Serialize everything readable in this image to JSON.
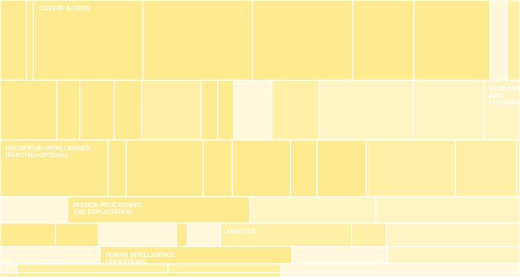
{
  "chart_data": {
    "type": "treemap",
    "title": "",
    "colors": {
      "strong": "#ffeb8f",
      "medium": "#fff0a6",
      "light": "#fff5c4",
      "pale": "#fff8dd",
      "text": "#ffffff"
    },
    "rows": [
      {
        "height": 116,
        "cells": [
          {
            "w": 38,
            "shade": "strong"
          },
          {
            "w": 10,
            "shade": "strong"
          },
          {
            "w": 158,
            "shade": "strong",
            "label": "COVERT ACTION"
          },
          {
            "w": 158,
            "shade": "strong"
          },
          {
            "w": 145,
            "shade": "strong"
          },
          {
            "w": 88,
            "shade": "strong"
          },
          {
            "w": 110,
            "shade": "strong"
          },
          {
            "w": 24,
            "shade": "pale"
          },
          {
            "w": 19,
            "shade": "medium"
          }
        ]
      },
      {
        "height": 86,
        "cells": [
          {
            "w": 82,
            "shade": "strong"
          },
          {
            "w": 33,
            "shade": "strong"
          },
          {
            "w": 50,
            "shade": "strong"
          },
          {
            "w": 39,
            "shade": "strong"
          },
          {
            "w": 86,
            "shade": "medium"
          },
          {
            "w": 24,
            "shade": "strong"
          },
          {
            "w": 23,
            "shade": "strong"
          },
          {
            "w": 55,
            "shade": "pale"
          },
          {
            "w": 68,
            "shade": "medium"
          },
          {
            "w": 136,
            "shade": "light"
          },
          {
            "w": 102,
            "shade": "light"
          },
          {
            "w": 52,
            "shade": "light",
            "label": "FACILITIES AND\nLOGISTICS"
          }
        ]
      },
      {
        "height": 82,
        "cells": [
          {
            "w": 156,
            "shade": "strong",
            "label": "GEOSPATIAL INTELLIGENCE\n(ELECTRO-OPTICAL)"
          },
          {
            "w": 26,
            "shade": "strong"
          },
          {
            "w": 111,
            "shade": "strong"
          },
          {
            "w": 42,
            "shade": "strong"
          },
          {
            "w": 84,
            "shade": "strong"
          },
          {
            "w": 38,
            "shade": "strong"
          },
          {
            "w": 71,
            "shade": "strong"
          },
          {
            "w": 129,
            "shade": "medium"
          },
          {
            "w": 88,
            "shade": "medium"
          },
          {
            "w": 5,
            "shade": "medium"
          }
        ]
      },
      {
        "height": 38,
        "cells": [
          {
            "w": 97,
            "shade": "pale"
          },
          {
            "w": 263,
            "shade": "strong",
            "label": "MISSION PROCESSING\nAND EXPLOITATION"
          },
          {
            "w": 182,
            "shade": "light"
          },
          {
            "w": 208,
            "shade": "light"
          }
        ]
      },
      {
        "height": 34,
        "cells": [
          {
            "w": 80,
            "shade": "strong"
          },
          {
            "w": 62,
            "shade": "strong"
          },
          {
            "w": 112,
            "shade": "pale"
          },
          {
            "w": 16,
            "shade": "strong"
          },
          {
            "w": 48,
            "shade": "pale"
          },
          {
            "w": 189,
            "shade": "medium",
            "label": "ANALYSIS"
          },
          {
            "w": 50,
            "shade": "medium"
          },
          {
            "w": 193,
            "shade": "light"
          }
        ]
      },
      {
        "height": 25,
        "cells": [
          {
            "w": 144,
            "shade": "pale"
          },
          {
            "w": 277,
            "shade": "strong",
            "label": "HUMAN INTELLIGENCE\nOPERATIONS"
          },
          {
            "w": 138,
            "shade": "pale"
          },
          {
            "w": 191,
            "shade": "light"
          }
        ]
      },
      {
        "height": 13,
        "cells": [
          {
            "w": 24,
            "shade": "pale"
          },
          {
            "w": 218,
            "shade": "medium"
          },
          {
            "w": 163,
            "shade": "medium"
          },
          {
            "w": 345,
            "shade": "pale"
          }
        ]
      },
      {
        "height": 6,
        "cells": [
          {
            "w": 24,
            "shade": "medium"
          },
          {
            "w": 382,
            "shade": "strong"
          },
          {
            "w": 344,
            "shade": "pale"
          }
        ]
      }
    ]
  }
}
